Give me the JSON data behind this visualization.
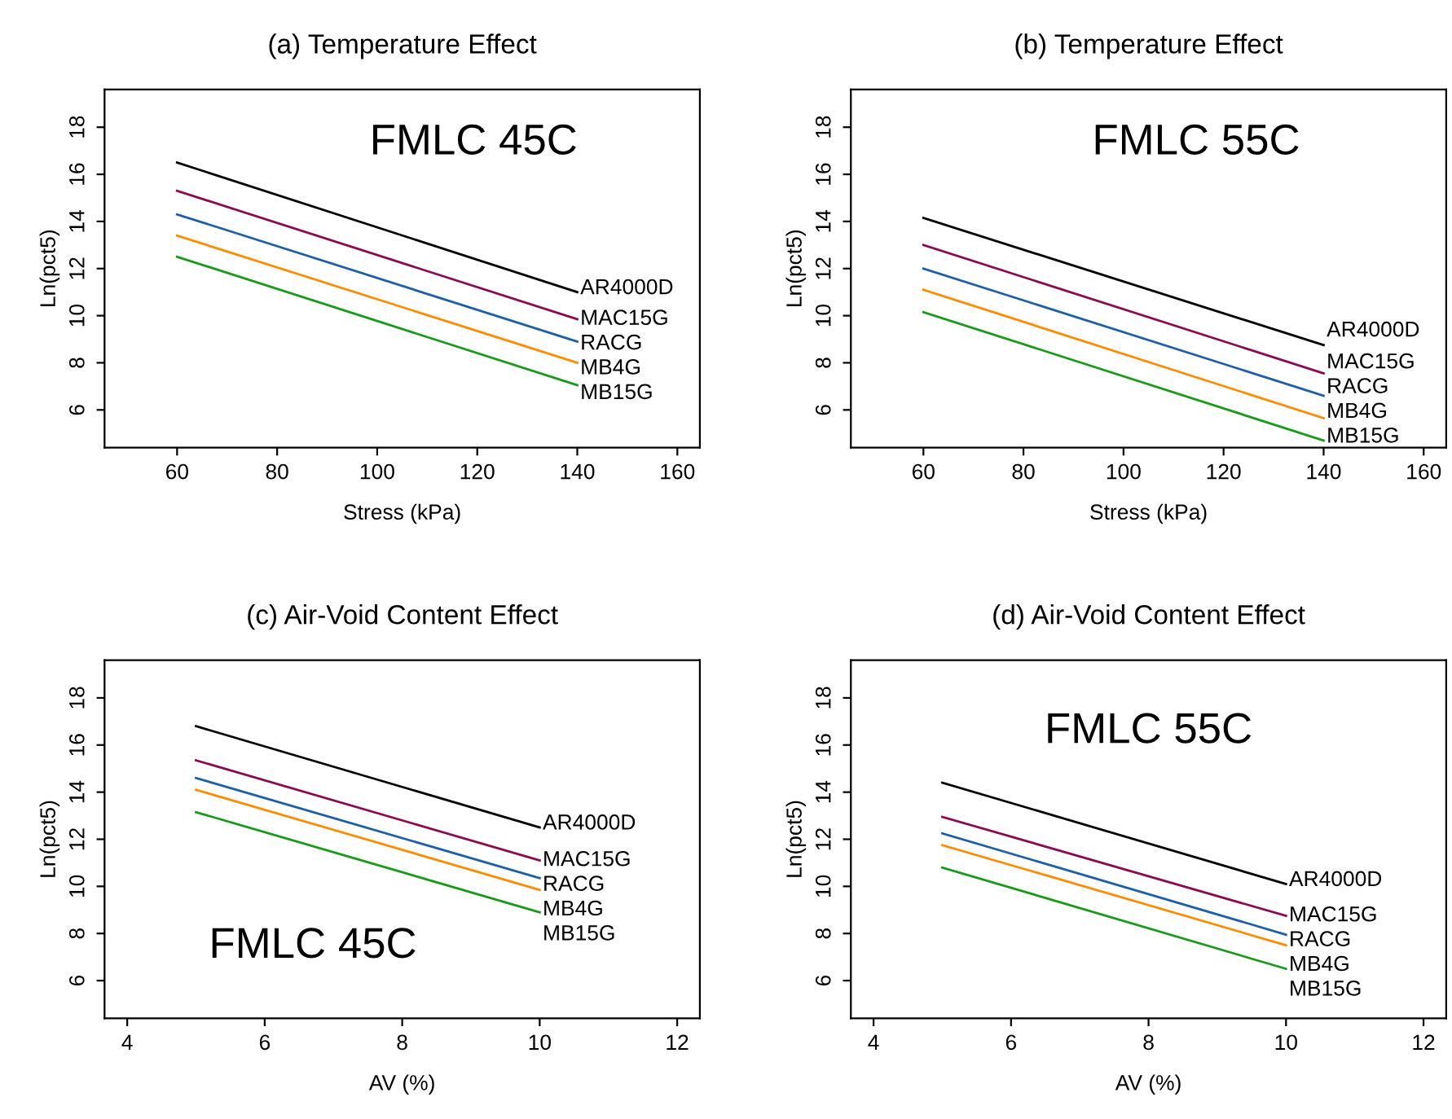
{
  "chart_data": [
    {
      "type": "line",
      "title": "(a) Temperature Effect",
      "xlabel": "Stress (kPa)",
      "ylabel": "Ln(pct5)",
      "annotations": [
        "FMLC 45C"
      ],
      "x": [
        60,
        140
      ],
      "xlim": [
        45.5,
        164.5
      ],
      "xticks": [
        60,
        80,
        100,
        120,
        140,
        160
      ],
      "ylim": [
        4.4,
        19.6
      ],
      "yticks": [
        6,
        8,
        10,
        12,
        14,
        16,
        18
      ],
      "grid": false,
      "legend": false,
      "series": [
        {
          "name": "AR4000D",
          "color": "#000000",
          "values": [
            16.5,
            11.0
          ]
        },
        {
          "name": "MAC15G",
          "color": "#8b0a50",
          "values": [
            15.3,
            9.85
          ]
        },
        {
          "name": "RACG",
          "color": "#1f5fa8",
          "values": [
            14.3,
            8.9
          ]
        },
        {
          "name": "MB4G",
          "color": "#ff8c00",
          "values": [
            13.4,
            8.0
          ]
        },
        {
          "name": "MB15G",
          "color": "#1a9a1a",
          "values": [
            12.5,
            7.05
          ]
        }
      ]
    },
    {
      "type": "line",
      "title": "(b) Temperature Effect",
      "xlabel": "Stress (kPa)",
      "ylabel": "Ln(pct5)",
      "annotations": [
        "FMLC 55C"
      ],
      "x": [
        60,
        140
      ],
      "xlim": [
        45.5,
        164.5
      ],
      "xticks": [
        60,
        80,
        100,
        120,
        140,
        160
      ],
      "ylim": [
        4.4,
        19.6
      ],
      "yticks": [
        6,
        8,
        10,
        12,
        14,
        16,
        18
      ],
      "grid": false,
      "legend": false,
      "series": [
        {
          "name": "AR4000D",
          "color": "#000000",
          "values": [
            14.15,
            8.75
          ]
        },
        {
          "name": "MAC15G",
          "color": "#8b0a50",
          "values": [
            13.0,
            7.55
          ]
        },
        {
          "name": "RACG",
          "color": "#1f5fa8",
          "values": [
            12.0,
            6.6
          ]
        },
        {
          "name": "MB4G",
          "color": "#ff8c00",
          "values": [
            11.1,
            5.65
          ]
        },
        {
          "name": "MB15G",
          "color": "#1a9a1a",
          "values": [
            10.15,
            4.7
          ]
        }
      ]
    },
    {
      "type": "line",
      "title": "(c) Air-Void Content Effect",
      "xlabel": "AV (%)",
      "ylabel": "Ln(pct5)",
      "annotations": [
        "FMLC 45C"
      ],
      "x": [
        5,
        10
      ],
      "xlim": [
        3.67,
        12.33
      ],
      "xticks": [
        4,
        6,
        8,
        10,
        12
      ],
      "ylim": [
        4.4,
        19.6
      ],
      "yticks": [
        6,
        8,
        10,
        12,
        14,
        16,
        18
      ],
      "grid": false,
      "legend": false,
      "series": [
        {
          "name": "AR4000D",
          "color": "#000000",
          "values": [
            16.8,
            12.5
          ]
        },
        {
          "name": "MAC15G",
          "color": "#8b0a50",
          "values": [
            15.35,
            11.1
          ]
        },
        {
          "name": "RACG",
          "color": "#1f5fa8",
          "values": [
            14.6,
            10.35
          ]
        },
        {
          "name": "MB4G",
          "color": "#ff8c00",
          "values": [
            14.1,
            9.85
          ]
        },
        {
          "name": "MB15G",
          "color": "#1a9a1a",
          "values": [
            13.15,
            8.9
          ]
        }
      ]
    },
    {
      "type": "line",
      "title": "(d) Air-Void Content Effect",
      "xlabel": "AV (%)",
      "ylabel": "Ln(pct5)",
      "annotations": [
        "FMLC 55C"
      ],
      "x": [
        5,
        10
      ],
      "xlim": [
        3.67,
        12.33
      ],
      "xticks": [
        4,
        6,
        8,
        10,
        12
      ],
      "ylim": [
        4.4,
        19.6
      ],
      "yticks": [
        6,
        8,
        10,
        12,
        14,
        16,
        18
      ],
      "grid": false,
      "legend": false,
      "series": [
        {
          "name": "AR4000D",
          "color": "#000000",
          "values": [
            14.4,
            10.1
          ]
        },
        {
          "name": "MAC15G",
          "color": "#8b0a50",
          "values": [
            12.95,
            8.75
          ]
        },
        {
          "name": "RACG",
          "color": "#1f5fa8",
          "values": [
            12.25,
            7.95
          ]
        },
        {
          "name": "MB4G",
          "color": "#ff8c00",
          "values": [
            11.75,
            7.5
          ]
        },
        {
          "name": "MB15G",
          "color": "#1a9a1a",
          "values": [
            10.8,
            6.5
          ]
        }
      ]
    }
  ]
}
